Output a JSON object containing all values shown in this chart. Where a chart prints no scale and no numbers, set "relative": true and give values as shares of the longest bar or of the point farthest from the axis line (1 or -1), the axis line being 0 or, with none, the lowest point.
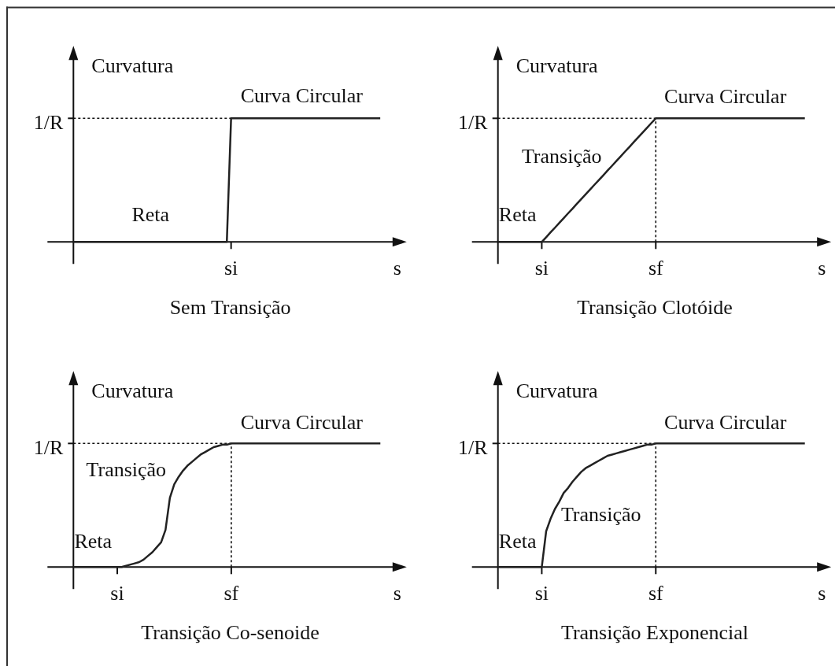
{
  "chart_data": [
    {
      "type": "line",
      "title": "Sem Transição",
      "ylabel": "Curvatura",
      "relative": true,
      "categories": [
        null,
        null,
        null,
        null,
        null,
        null,
        null,
        null,
        null,
        null,
        null,
        null,
        null,
        null,
        null,
        null,
        null,
        null,
        null,
        null,
        null,
        null,
        null,
        null,
        null,
        null,
        null,
        null,
        null,
        null,
        null,
        null,
        null,
        null,
        null,
        null,
        null,
        "si",
        null,
        null,
        null,
        null,
        null,
        null,
        null,
        null,
        null,
        null,
        null,
        null,
        null,
        null,
        null,
        null,
        null,
        null,
        null,
        null,
        null,
        null,
        null,
        null,
        null,
        null,
        null,
        null,
        null,
        null,
        null,
        null,
        null,
        null,
        null,
        null,
        null,
        null,
        "s"
      ],
      "values": [
        0,
        0,
        0,
        0,
        0,
        0,
        0,
        0,
        0,
        0,
        0,
        0,
        0,
        0,
        0,
        0,
        0,
        0,
        0,
        0,
        0,
        0,
        0,
        0,
        0,
        0,
        0,
        0,
        0,
        0,
        0,
        0,
        0,
        0,
        0,
        0,
        0,
        1,
        1,
        1,
        1,
        1,
        1,
        1,
        1,
        1,
        1,
        1,
        1,
        1,
        1,
        1,
        1,
        1,
        1,
        1,
        1,
        1,
        1,
        1,
        1,
        1,
        1,
        1,
        1,
        1,
        1,
        1,
        1,
        1,
        1,
        1,
        1,
        null,
        null,
        null,
        null
      ],
      "color": "#222222",
      "ref_lines": [
        {
          "axis": "y",
          "value": 1,
          "label": "1/R",
          "line_style": "dotted"
        }
      ],
      "annotations": [
        "Curva Circular",
        "Reta"
      ]
    },
    {
      "type": "line",
      "title": "Transição Clotóide",
      "xlabel": "s",
      "ylabel": "Curvatura",
      "relative": true,
      "categories": [
        null,
        null,
        null,
        null,
        null,
        null,
        null,
        null,
        null,
        null,
        "si",
        null,
        null,
        null,
        null,
        null,
        null,
        null,
        null,
        null,
        null,
        null,
        null,
        null,
        null,
        null,
        null,
        null,
        null,
        null,
        null,
        null,
        null,
        null,
        null,
        null,
        "sf",
        null,
        null,
        null,
        null,
        null,
        null,
        null,
        null,
        null,
        null,
        null,
        null,
        null,
        null,
        null,
        null,
        null,
        null,
        null,
        null,
        null,
        null,
        null,
        null,
        null,
        null,
        null,
        null,
        null,
        null,
        null,
        null,
        null,
        null
      ],
      "values": [
        0,
        0,
        0,
        0,
        0,
        0,
        0,
        0,
        0,
        0,
        0,
        0.038,
        0.077,
        0.115,
        0.154,
        0.192,
        0.231,
        0.269,
        0.308,
        0.346,
        0.385,
        0.423,
        0.462,
        0.5,
        0.538,
        0.577,
        0.615,
        0.654,
        0.692,
        0.731,
        0.769,
        0.808,
        0.846,
        0.885,
        0.923,
        0.962,
        1,
        1,
        1,
        1,
        1,
        1,
        1,
        1,
        1,
        1,
        1,
        1,
        1,
        1,
        1,
        1,
        1,
        1,
        1,
        1,
        1,
        1,
        1,
        1,
        1,
        1,
        1,
        1,
        1,
        1,
        1,
        1,
        1,
        1,
        1
      ],
      "color": "#222222",
      "ref_lines": [
        {
          "axis": "y",
          "value": 1,
          "label": "1/R",
          "line_style": "dotted"
        },
        {
          "axis": "x",
          "value": "sf",
          "line_style": "dotted"
        }
      ],
      "annotations": [
        "Curva Circular",
        "Transição",
        "Reta"
      ]
    },
    {
      "type": "line",
      "title": "Transição Co-senoide",
      "xlabel": "s",
      "ylabel": "Curvatura",
      "relative": true,
      "categories": [
        null,
        null,
        null,
        null,
        null,
        null,
        null,
        null,
        null,
        null,
        "si",
        null,
        null,
        null,
        null,
        null,
        null,
        null,
        null,
        null,
        null,
        null,
        null,
        null,
        null,
        null,
        null,
        null,
        null,
        null,
        null,
        null,
        null,
        null,
        null,
        null,
        "sf",
        null,
        null,
        null,
        null,
        null,
        null,
        null,
        null,
        null,
        null,
        null,
        null,
        null,
        null,
        null,
        null,
        null,
        null,
        null,
        null,
        null,
        null,
        null,
        null,
        null,
        null,
        null,
        null,
        null,
        null,
        null,
        null,
        null,
        null
      ],
      "values": [
        0,
        0,
        0,
        0,
        0,
        0,
        0,
        0,
        0,
        0,
        0,
        0,
        0.01,
        0.02,
        0.03,
        0.04,
        0.06,
        0.09,
        0.12,
        0.16,
        0.2,
        0.3,
        0.56,
        0.67,
        0.73,
        0.78,
        0.82,
        0.85,
        0.88,
        0.91,
        0.93,
        0.95,
        0.97,
        0.98,
        0.99,
        0.99,
        1,
        1,
        1,
        1,
        1,
        1,
        1,
        1,
        1,
        1,
        1,
        1,
        1,
        1,
        1,
        1,
        1,
        1,
        1,
        1,
        1,
        1,
        1,
        1,
        1,
        1,
        1,
        1,
        1,
        1,
        1,
        1,
        1,
        1,
        1
      ],
      "color": "#222222",
      "ref_lines": [
        {
          "axis": "y",
          "value": 1,
          "label": "1/R",
          "line_style": "dotted"
        },
        {
          "axis": "x",
          "value": "sf",
          "line_style": "dotted"
        }
      ],
      "annotations": [
        "Curva Circular",
        "Transição",
        "Reta"
      ]
    },
    {
      "type": "line",
      "title": "Transição Exponencial",
      "xlabel": "s",
      "ylabel": "Curvatura",
      "relative": true,
      "categories": [
        null,
        null,
        null,
        null,
        null,
        null,
        null,
        null,
        null,
        null,
        "si",
        null,
        null,
        null,
        null,
        null,
        null,
        null,
        null,
        null,
        null,
        null,
        null,
        null,
        null,
        null,
        null,
        null,
        null,
        null,
        null,
        null,
        null,
        null,
        null,
        null,
        "sf",
        null,
        null,
        null,
        null,
        null,
        null,
        null,
        null,
        null,
        null,
        null,
        null,
        null,
        null,
        null,
        null,
        null,
        null,
        null,
        null,
        null,
        null,
        null,
        null,
        null,
        null,
        null,
        null,
        null,
        null,
        null,
        null,
        null,
        null
      ],
      "values": [
        0,
        0,
        0,
        0,
        0,
        0,
        0,
        0,
        0,
        0,
        0,
        0.29,
        0.39,
        0.47,
        0.53,
        0.6,
        0.64,
        0.69,
        0.73,
        0.77,
        0.8,
        0.82,
        0.84,
        0.86,
        0.88,
        0.9,
        0.91,
        0.92,
        0.93,
        0.94,
        0.95,
        0.96,
        0.97,
        0.98,
        0.99,
        0.99,
        1,
        1,
        1,
        1,
        1,
        1,
        1,
        1,
        1,
        1,
        1,
        1,
        1,
        1,
        1,
        1,
        1,
        1,
        1,
        1,
        1,
        1,
        1,
        1,
        1,
        1,
        1,
        1,
        1,
        1,
        1,
        1,
        1,
        1,
        1
      ],
      "color": "#222222",
      "ref_lines": [
        {
          "axis": "y",
          "value": 1,
          "label": "1/R",
          "line_style": "dotted"
        },
        {
          "axis": "x",
          "value": "sf",
          "line_style": "dotted"
        }
      ],
      "annotations": [
        "Curva Circular",
        "Transição",
        "Reta"
      ]
    }
  ]
}
